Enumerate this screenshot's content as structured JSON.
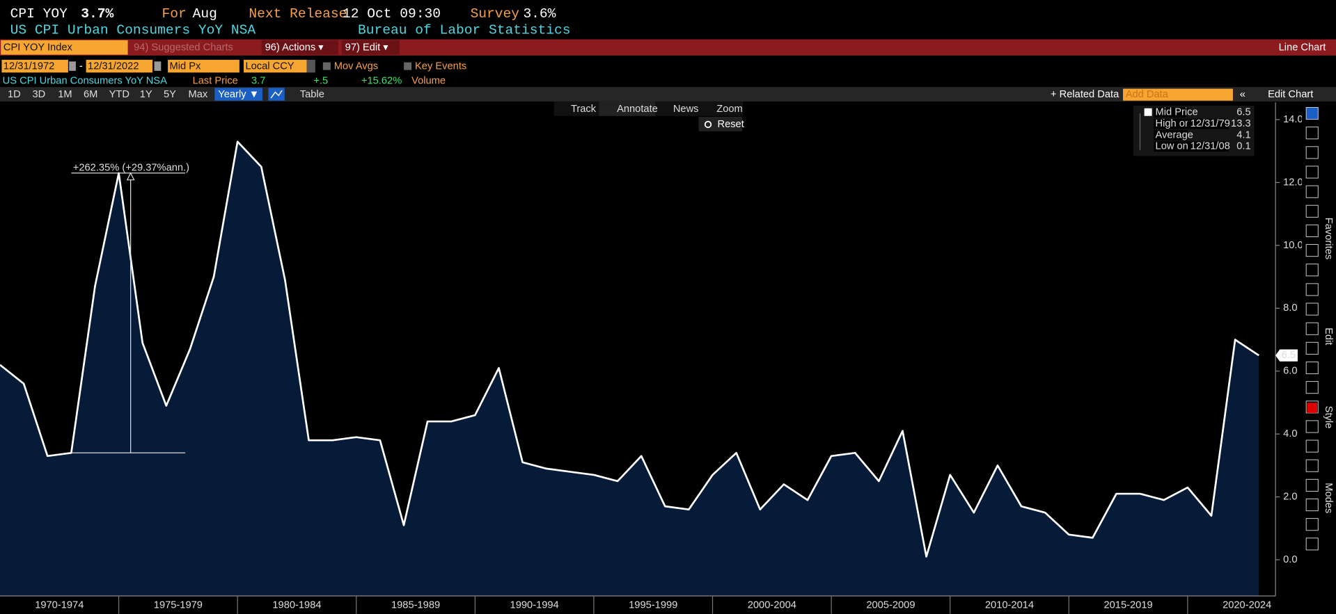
{
  "header": {
    "ticker": "CPI YOY",
    "last": "3.7%",
    "for_label": "For",
    "for_value": "Aug",
    "release_label": "Next Release",
    "release_value": "12 Oct 09:30",
    "survey_label": "Survey",
    "survey_value": "3.6%",
    "description": "US CPI Urban Consumers YoY NSA",
    "source": "Bureau of Labor Statistics"
  },
  "menu_bar": {
    "security": "CPI YOY Index",
    "suggested": "94) Suggested Charts",
    "actions": "96) Actions ▾",
    "edit": "97) Edit ▾",
    "view": "Line Chart"
  },
  "controls": {
    "start_date": "12/31/1972",
    "separator": "-",
    "end_date": "12/31/2022",
    "field": "Mid Px",
    "currency": "Local CCY",
    "mov_avgs": "Mov Avgs",
    "key_events": "Key Events"
  },
  "info_row": {
    "name": "US CPI Urban Consumers YoY NSA",
    "last_price_label": "Last Price",
    "last_price": "3.7",
    "change": "+.5",
    "change_pct": "+15.62%",
    "volume_label": "Volume"
  },
  "toolbar": {
    "periods": [
      "1D",
      "3D",
      "1M",
      "6M",
      "YTD",
      "1Y",
      "5Y",
      "Max"
    ],
    "frequency": "Yearly ▼",
    "table": "Table",
    "related": "+ Related Data",
    "add_data": "Add Data",
    "collapse": "«",
    "edit_chart": "Edit Chart"
  },
  "chart_tools": {
    "track": "Track",
    "annotate": "Annotate",
    "news": "News",
    "zoom": "Zoom",
    "reset": "Reset"
  },
  "side_tabs": [
    "Favorites",
    "Edit",
    "Style",
    "Modes"
  ],
  "chart_data": {
    "type": "area",
    "color": "#ffffff",
    "fill": "#061b37",
    "x": [
      1969,
      1970,
      1971,
      1972,
      1973,
      1974,
      1975,
      1976,
      1977,
      1978,
      1979,
      1980,
      1981,
      1982,
      1983,
      1984,
      1985,
      1986,
      1987,
      1988,
      1989,
      1990,
      1991,
      1992,
      1993,
      1994,
      1995,
      1996,
      1997,
      1998,
      1999,
      2000,
      2001,
      2002,
      2003,
      2004,
      2005,
      2006,
      2007,
      2008,
      2009,
      2010,
      2011,
      2012,
      2013,
      2014,
      2015,
      2016,
      2017,
      2018,
      2019,
      2020,
      2021,
      2022
    ],
    "values": [
      6.2,
      5.6,
      3.3,
      3.4,
      8.7,
      12.3,
      6.9,
      4.9,
      6.7,
      9.0,
      13.3,
      12.5,
      8.9,
      3.8,
      3.8,
      3.9,
      3.8,
      1.1,
      4.4,
      4.4,
      4.6,
      6.1,
      3.1,
      2.9,
      2.8,
      2.7,
      2.5,
      3.3,
      1.7,
      1.6,
      2.7,
      3.4,
      1.6,
      2.4,
      1.9,
      3.3,
      3.4,
      2.5,
      4.1,
      0.1,
      2.7,
      1.5,
      3.0,
      1.7,
      1.5,
      0.8,
      0.7,
      2.1,
      2.1,
      1.9,
      2.3,
      1.4,
      7.0,
      6.5
    ],
    "xlim": [
      1969,
      2022.7
    ],
    "ylim": [
      -1.15,
      14.55
    ],
    "yticks": [
      {
        "value": 0,
        "label": "0.0"
      },
      {
        "value": 2,
        "label": "2.0"
      },
      {
        "value": 4,
        "label": "4.0"
      },
      {
        "value": 6,
        "label": "6.0"
      },
      {
        "value": 8,
        "label": "8.0"
      },
      {
        "value": 10,
        "label": "10.0"
      },
      {
        "value": 12,
        "label": "12.0"
      },
      {
        "value": 14,
        "label": "14.0"
      }
    ],
    "xticks": [
      1974,
      1979,
      1984,
      1989,
      1994,
      1999,
      2004,
      2009,
      2014,
      2019
    ],
    "period_labels": [
      "1970-1974",
      "1975-1979",
      "1980-1984",
      "1985-1989",
      "1990-1994",
      "1995-1999",
      "2000-2004",
      "2005-2009",
      "2010-2014",
      "2015-2019",
      "2020-2024"
    ],
    "annotation": "+262.35% (+29.37%ann.)",
    "legend": [
      {
        "label": "Mid Price",
        "value": 6.5
      },
      {
        "label": "High on",
        "date": "12/31/79",
        "value": 13.3
      },
      {
        "label": "Average",
        "value": 4.1
      },
      {
        "label": "Low on",
        "date": "12/31/08",
        "value": 0.1
      }
    ]
  }
}
